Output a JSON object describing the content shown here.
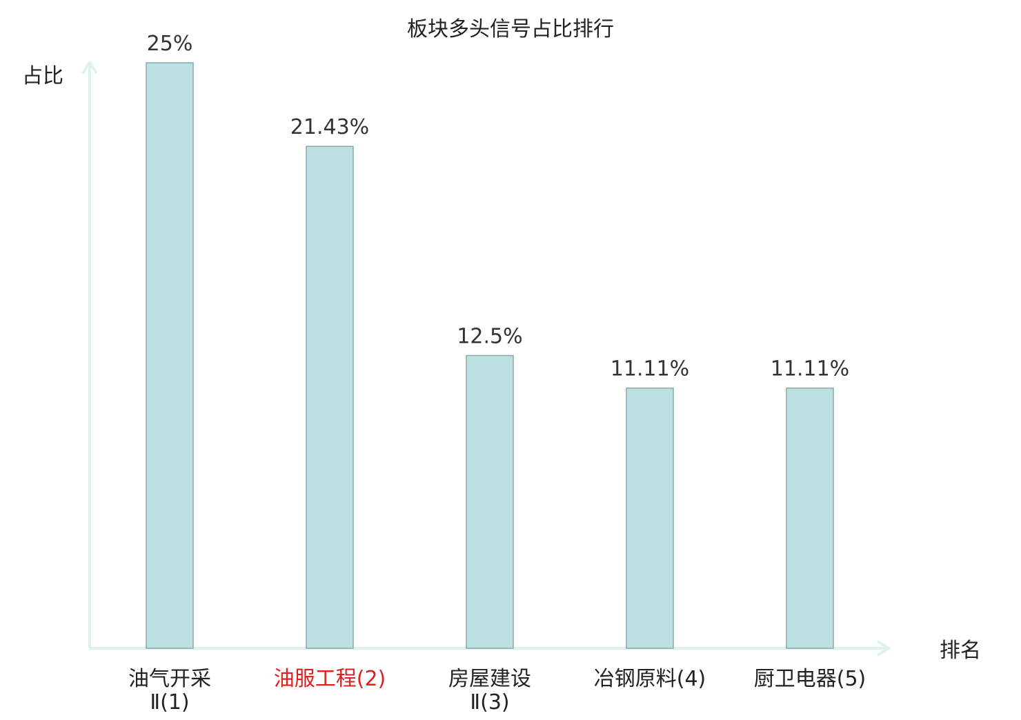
{
  "chart_data": {
    "type": "bar",
    "title": "板块多头信号占比排行",
    "ylabel": "占比",
    "xlabel": "排名",
    "ylim": [
      0,
      25
    ],
    "categories": [
      {
        "lines": [
          "油气开采",
          "Ⅱ(1)"
        ],
        "highlight": false
      },
      {
        "lines": [
          "油服工程(2)"
        ],
        "highlight": true
      },
      {
        "lines": [
          "房屋建设",
          "Ⅱ(3)"
        ],
        "highlight": false
      },
      {
        "lines": [
          "冶钢原料(4)"
        ],
        "highlight": false
      },
      {
        "lines": [
          "厨卫电器(5)"
        ],
        "highlight": false
      }
    ],
    "values": [
      25,
      21.43,
      12.5,
      11.11,
      11.11
    ],
    "value_labels": [
      "25%",
      "21.43%",
      "12.5%",
      "11.11%",
      "11.11%"
    ],
    "grid": false,
    "legend": "none"
  },
  "colors": {
    "bar_fill": "#bde0e2",
    "bar_stroke": "#8aa8a9",
    "axis": "#dff1ee",
    "text": "#222222",
    "value_label": "#333333",
    "highlight": "#e02020"
  }
}
